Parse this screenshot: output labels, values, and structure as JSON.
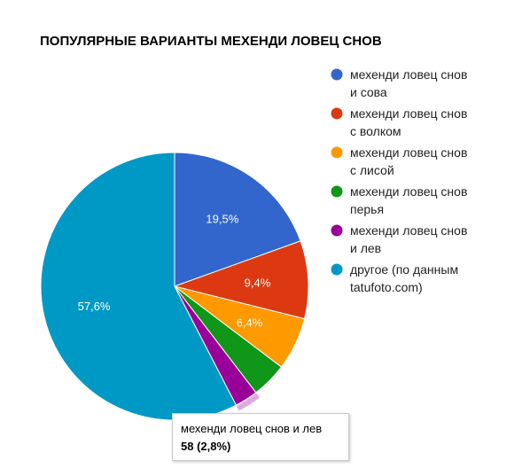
{
  "chart_data": {
    "type": "pie",
    "title": "ПОПУЛЯРНЫЕ ВАРИАНТЫ МЕХЕНДИ ЛОВЕЦ СНОВ",
    "slices": [
      {
        "lines": [
          "мехенди ловец снов",
          "и сова"
        ],
        "value": 19.5,
        "label": "19,5%",
        "color": "#3366cc"
      },
      {
        "lines": [
          "мехенди ловец снов",
          "с волком"
        ],
        "value": 9.4,
        "label": "9,4%",
        "color": "#dc3912"
      },
      {
        "lines": [
          "мехенди ловец снов",
          "с лисой"
        ],
        "value": 6.4,
        "label": "6,4%",
        "color": "#ff9900"
      },
      {
        "lines": [
          "мехенди ловец снов",
          "перья"
        ],
        "value": 4.3,
        "label": "",
        "color": "#109618"
      },
      {
        "lines": [
          "мехенди ловец снов",
          "и лев"
        ],
        "value": 2.8,
        "label": "",
        "color": "#990099"
      },
      {
        "lines": [
          "другое (по данным",
          "tatufoto.com)"
        ],
        "value": 57.6,
        "label": "57,6%",
        "color": "#0099c6"
      }
    ],
    "legend_position": "right",
    "highlighted_slice": 4,
    "highlight_color": "#e0a8e0"
  },
  "tooltip": {
    "name": "мехенди ловец снов и лев",
    "value": "58 (2,8%)"
  }
}
